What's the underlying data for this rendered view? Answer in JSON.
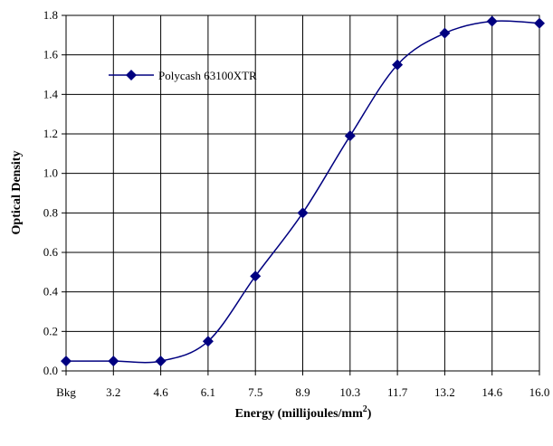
{
  "chart_data": {
    "type": "line",
    "title": "",
    "xlabel": "Energy (millijoules/mm",
    "xlabel_superscript": "2",
    "xlabel_suffix": ")",
    "ylabel": "Optical Density",
    "categories": [
      "Bkg",
      "3.2",
      "4.6",
      "6.1",
      "7.5",
      "8.9",
      "10.3",
      "11.7",
      "13.2",
      "14.6",
      "16.0"
    ],
    "ylim": [
      0,
      1.8
    ],
    "yticks": [
      "0.0",
      "0.2",
      "0.4",
      "0.6",
      "0.8",
      "1.0",
      "1.2",
      "1.4",
      "1.6",
      "1.8"
    ],
    "grid": true,
    "legend_position": "top-left",
    "series": [
      {
        "name": "Polycash 63100XTR",
        "color": "#000080",
        "marker": "diamond",
        "values": [
          0.05,
          0.05,
          0.05,
          0.15,
          0.48,
          0.8,
          1.19,
          1.55,
          1.71,
          1.77,
          1.76
        ]
      }
    ]
  }
}
